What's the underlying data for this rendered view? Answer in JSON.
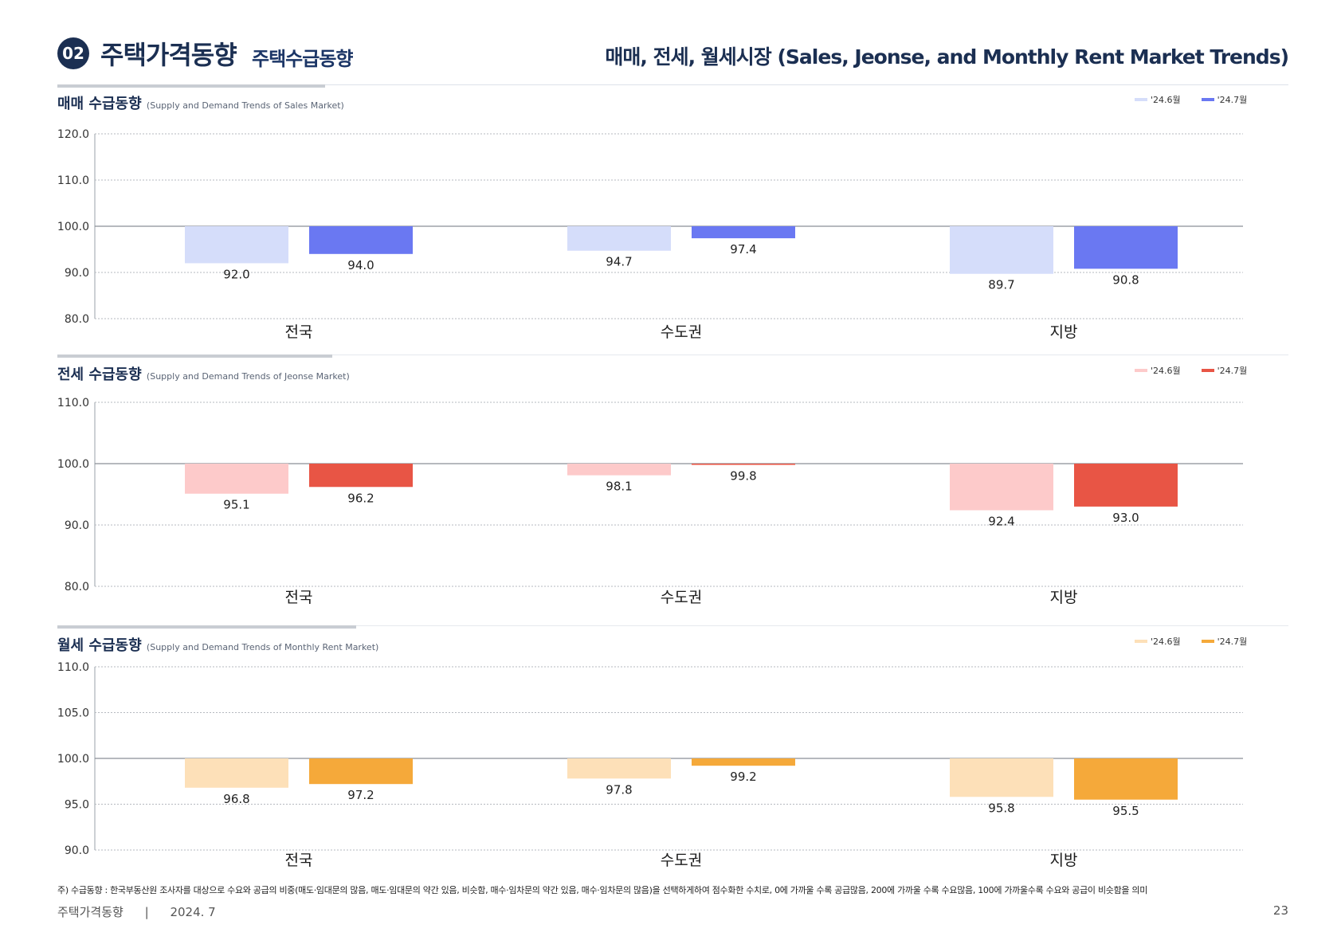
{
  "header": {
    "badge": "02",
    "title": "주택가격동향",
    "subtitle": "주택수급동향",
    "right_title": "매매, 전세, 월세시장 (Sales, Jeonse, and Monthly Rent Market Trends)"
  },
  "sections": [
    {
      "title_ko": "매매 수급동향",
      "title_en": "(Supply and Demand Trends of Sales Market)",
      "legend": [
        "'24.6월",
        "'24.7월"
      ]
    },
    {
      "title_ko": "전세 수급동향",
      "title_en": "(Supply and Demand Trends of Jeonse Market)",
      "legend": [
        "'24.6월",
        "'24.7월"
      ]
    },
    {
      "title_ko": "월세 수급동향",
      "title_en": "(Supply and Demand Trends of Monthly Rent Market)",
      "legend": [
        "'24.6월",
        "'24.7월"
      ]
    }
  ],
  "chart_data": [
    {
      "type": "bar",
      "baseline": 100,
      "categories": [
        "전국",
        "수도권",
        "지방"
      ],
      "series": [
        {
          "name": "'24.6월",
          "values": [
            92.0,
            94.7,
            89.7
          ],
          "color": "#d5ddfa"
        },
        {
          "name": "'24.7월",
          "values": [
            94.0,
            97.4,
            90.8
          ],
          "color": "#6a78f2"
        }
      ],
      "yticks": [
        "120.0",
        "110.0",
        "100.0",
        "90.0",
        "80.0"
      ],
      "ylim": [
        80,
        120
      ],
      "grid": true
    },
    {
      "type": "bar",
      "baseline": 100,
      "categories": [
        "전국",
        "수도권",
        "지방"
      ],
      "series": [
        {
          "name": "'24.6월",
          "values": [
            95.1,
            98.1,
            92.4
          ],
          "color": "#fdcaca"
        },
        {
          "name": "'24.7월",
          "values": [
            96.2,
            99.8,
            93.0
          ],
          "color": "#e85545"
        }
      ],
      "yticks": [
        "110.0",
        "100.0",
        "90.0",
        "80.0"
      ],
      "ylim": [
        80,
        110
      ],
      "grid": true
    },
    {
      "type": "bar",
      "baseline": 100,
      "categories": [
        "전국",
        "수도권",
        "지방"
      ],
      "series": [
        {
          "name": "'24.6월",
          "values": [
            96.8,
            97.8,
            95.8
          ],
          "color": "#fde0b8"
        },
        {
          "name": "'24.7월",
          "values": [
            97.2,
            99.2,
            95.5
          ],
          "color": "#f5a93a"
        }
      ],
      "yticks": [
        "110.0",
        "105.0",
        "100.0",
        "95.0",
        "90.0"
      ],
      "ylim": [
        90,
        110
      ],
      "grid": true
    }
  ],
  "footnote": "주) 수급동향 : 한국부동산원 조사자를 대상으로 수요와 공급의 비중(매도·임대문의 많음, 매도·임대문의 약간 있음, 비슷함, 매수·임차문의 약간 있음, 매수·임차문의 많음)을 선택하게하여 점수화한 수치로, 0에 가까울 수록 공급많음, 200에 가까울 수록 수요많음, 100에 가까울수록 수요와 공급이 비슷함을 의미",
  "footer": {
    "left": "주택가격동향",
    "date": "2024. 7",
    "page": "23"
  }
}
